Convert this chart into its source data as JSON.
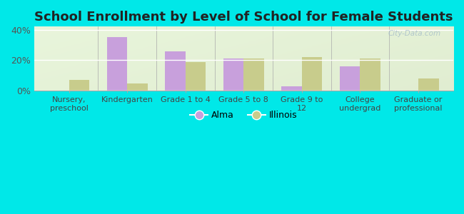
{
  "title": "School Enrollment by Level of School for Female Students",
  "categories": [
    "Nursery,\npreschool",
    "Kindergarten",
    "Grade 1 to 4",
    "Grade 5 to 8",
    "Grade 9 to\n12",
    "College\nundergrad",
    "Graduate or\nprofessional"
  ],
  "alma_values": [
    0.0,
    35.0,
    26.0,
    21.0,
    3.0,
    16.0,
    0.0
  ],
  "illinois_values": [
    7.0,
    5.0,
    19.0,
    21.0,
    22.0,
    21.0,
    8.0
  ],
  "alma_color": "#c8a0dc",
  "illinois_color": "#c8cc8c",
  "background_color": "#00e8e8",
  "plot_bg_color": "#e8f0d8",
  "ylim": [
    0,
    42
  ],
  "yticks": [
    0,
    20,
    40
  ],
  "ytick_labels": [
    "0%",
    "20%",
    "40%"
  ],
  "bar_width": 0.35,
  "title_fontsize": 13,
  "legend_labels": [
    "Alma",
    "Illinois"
  ],
  "watermark": "City-Data.com"
}
